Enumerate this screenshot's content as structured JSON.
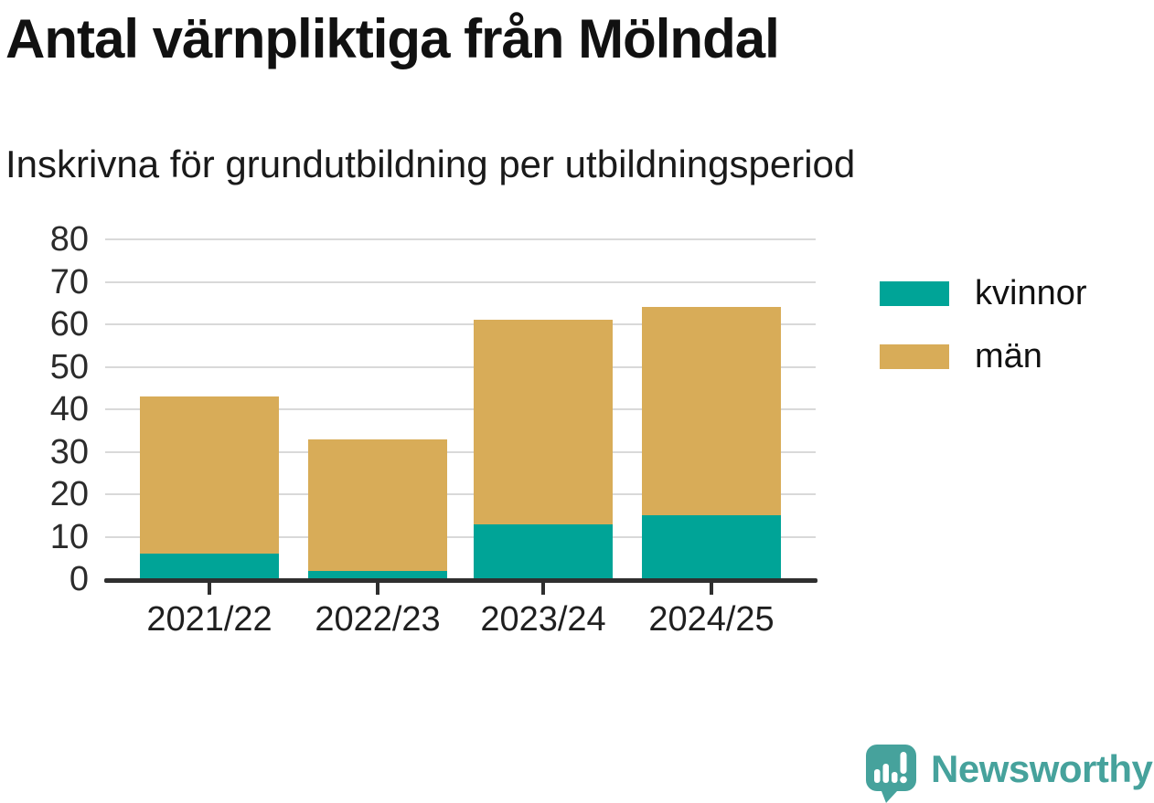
{
  "header": {
    "title": "Antal värnpliktiga från Mölndal",
    "subtitle": "Inskrivna för grundutbildning per utbildningsperiod"
  },
  "legend": {
    "items": [
      {
        "label": "kvinnor",
        "color": "#00a497"
      },
      {
        "label": "män",
        "color": "#d8ac58"
      }
    ]
  },
  "chart_data": {
    "type": "bar",
    "stacked": true,
    "title": "Antal värnpliktiga från Mölndal",
    "subtitle": "Inskrivna för grundutbildning per utbildningsperiod",
    "categories": [
      "2021/22",
      "2022/23",
      "2023/24",
      "2024/25"
    ],
    "series": [
      {
        "name": "kvinnor",
        "color": "#00a497",
        "values": [
          6,
          2,
          13,
          15
        ]
      },
      {
        "name": "män",
        "color": "#d8ac58",
        "values": [
          37,
          31,
          48,
          49
        ]
      }
    ],
    "totals": [
      43,
      33,
      61,
      64
    ],
    "xlabel": "",
    "ylabel": "",
    "ylim": [
      0,
      80
    ],
    "yticks": [
      0,
      10,
      20,
      30,
      40,
      50,
      60,
      70,
      80
    ],
    "grid": true,
    "legend_position": "right"
  },
  "footer": {
    "brand": "Newsworthy"
  },
  "colors": {
    "teal": "#00a497",
    "gold": "#d8ac58",
    "axis": "#2f2f2f",
    "grid": "#d9d9d9",
    "text": "#1a1a1a",
    "brand": "#46a29c"
  }
}
